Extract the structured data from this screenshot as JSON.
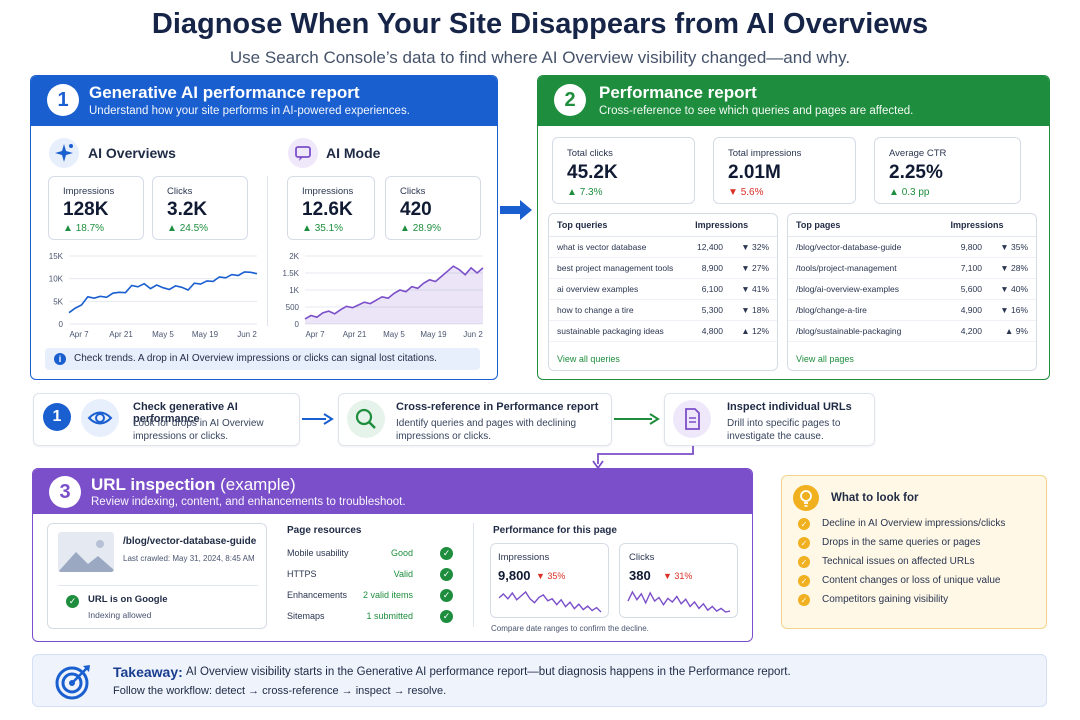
{
  "title": "Diagnose When Your Site Disappears from AI Overviews",
  "subtitle": "Use Search Console’s data to find where AI Overview visibility changed—and why.",
  "colors": {
    "blue": "#1a5fd0",
    "green": "#1e8e3e",
    "purple": "#7b4fc9",
    "red": "#d93025",
    "yellow": "#f0b020"
  },
  "panel1": {
    "number": "1",
    "title": "Generative AI performance report",
    "subtitle": "Understand how your site performs in AI-powered experiences.",
    "ai_overviews": {
      "label": "AI Overviews",
      "icon": "sparkle-icon",
      "impressions_label": "Impressions",
      "impressions": "128K",
      "impressions_change": "18.7%",
      "clicks_label": "Clicks",
      "clicks": "3.2K",
      "clicks_change": "24.5%",
      "yticks": [
        "15K",
        "10K",
        "5K",
        "0"
      ],
      "xticks": [
        "Apr 7",
        "Apr 21",
        "May 5",
        "May 19",
        "Jun 2"
      ]
    },
    "ai_mode": {
      "label": "AI Mode",
      "icon": "chat-icon",
      "impressions_label": "Impressions",
      "impressions": "12.6K",
      "impressions_change": "35.1%",
      "clicks_label": "Clicks",
      "clicks": "420",
      "clicks_change": "28.9%",
      "yticks": [
        "2K",
        "1.5K",
        "1K",
        "500",
        "0"
      ],
      "xticks": [
        "Apr 7",
        "Apr 21",
        "May 5",
        "May 19",
        "Jun 2"
      ]
    },
    "info": "Check trends. A drop in AI Overview impressions or clicks can signal lost citations."
  },
  "panel2": {
    "number": "2",
    "title": "Performance report",
    "subtitle": "Cross-reference to see which queries and pages are affected.",
    "kpis": [
      {
        "label": "Total clicks",
        "value": "45.2K",
        "change": "7.3%",
        "dir": "up"
      },
      {
        "label": "Total impressions",
        "value": "2.01M",
        "change": "5.6%",
        "dir": "down"
      },
      {
        "label": "Average CTR",
        "value": "2.25%",
        "change": "0.3 pp",
        "dir": "up"
      }
    ],
    "queries": {
      "header": "Top queries",
      "col": "Impressions",
      "link": "View all queries",
      "rows": [
        {
          "name": "what is vector database",
          "value": "12,400",
          "change": "32%",
          "dir": "down"
        },
        {
          "name": "best project management tools",
          "value": "8,900",
          "change": "27%",
          "dir": "down"
        },
        {
          "name": "ai overview examples",
          "value": "6,100",
          "change": "41%",
          "dir": "down"
        },
        {
          "name": "how to change a tire",
          "value": "5,300",
          "change": "18%",
          "dir": "down"
        },
        {
          "name": "sustainable packaging ideas",
          "value": "4,800",
          "change": "12%",
          "dir": "up"
        }
      ]
    },
    "pages": {
      "header": "Top pages",
      "col": "Impressions",
      "link": "View all pages",
      "rows": [
        {
          "name": "/blog/vector-database-guide",
          "value": "9,800",
          "change": "35%",
          "dir": "down"
        },
        {
          "name": "/tools/project-management",
          "value": "7,100",
          "change": "28%",
          "dir": "down"
        },
        {
          "name": "/blog/ai-overview-examples",
          "value": "5,600",
          "change": "40%",
          "dir": "down"
        },
        {
          "name": "/blog/change-a-tire",
          "value": "4,900",
          "change": "16%",
          "dir": "down"
        },
        {
          "name": "/blog/sustainable-packaging",
          "value": "4,200",
          "change": "9%",
          "dir": "up"
        }
      ]
    }
  },
  "workflow": [
    {
      "number": "1",
      "icon": "eye-icon",
      "title": "Check generative AI performance",
      "text": "Look for drops in AI Overview impressions or clicks."
    },
    {
      "icon": "magnifier-icon",
      "title": "Cross-reference in Performance report",
      "text": "Identify queries and pages with declining impressions or clicks."
    },
    {
      "icon": "document-icon",
      "title": "Inspect individual URLs",
      "text": "Drill into specific pages to investigate the cause."
    }
  ],
  "panel3": {
    "number": "3",
    "title": "URL inspection",
    "title_suffix": "(example)",
    "subtitle": "Review indexing, content, and enhancements to troubleshoot.",
    "url": "/blog/vector-database-guide",
    "crawled": "Last crawled: May 31, 2024, 8:45 AM",
    "status": "URL is on Google",
    "status_sub": "Indexing allowed",
    "resources_title": "Page resources",
    "resources": [
      {
        "name": "Mobile usability",
        "value": "Good"
      },
      {
        "name": "HTTPS",
        "value": "Valid"
      },
      {
        "name": "Enhancements",
        "value": "2 valid items"
      },
      {
        "name": "Sitemaps",
        "value": "1 submitted"
      }
    ],
    "perf_title": "Performance for this page",
    "impressions_label": "Impressions",
    "impressions": "9,800",
    "impressions_change": "35%",
    "clicks_label": "Clicks",
    "clicks": "380",
    "clicks_change": "31%",
    "note": "Compare date ranges to confirm the decline."
  },
  "look_for": {
    "title": "What to look for",
    "icon": "lightbulb-icon",
    "items": [
      "Decline in AI Overview impressions/clicks",
      "Drops in the same queries or pages",
      "Technical issues on affected URLs",
      "Content changes or loss of unique value",
      "Competitors gaining visibility"
    ]
  },
  "takeaway": {
    "label": "Takeaway:",
    "text": "AI Overview visibility starts in the Generative AI performance report—but diagnosis happens in the Performance report.",
    "text2": "Follow the workflow: detect → cross-reference → inspect → resolve.",
    "icon": "target-icon"
  },
  "chart_data": [
    {
      "type": "line",
      "series": [
        {
          "values": [
            2500,
            3500,
            4200,
            6000,
            5700,
            6100,
            5900,
            6800,
            7000,
            6900,
            8500,
            8200,
            8900,
            7800,
            8600,
            8000,
            7600,
            8400,
            8100,
            7500,
            9000,
            8800,
            9500,
            9400,
            10400,
            10200,
            10900,
            10700,
            11500,
            11400,
            11100
          ]
        }
      ],
      "x_ticks": [
        "Apr 7",
        "Apr 21",
        "May 5",
        "May 19",
        "Jun 2"
      ],
      "y_ticks": [
        "15K",
        "10K",
        "5K",
        "0"
      ],
      "ylim": [
        0,
        15000
      ]
    },
    {
      "type": "area",
      "series": [
        {
          "values": [
            150,
            250,
            200,
            330,
            380,
            300,
            420,
            520,
            480,
            560,
            640,
            600,
            700,
            800,
            760,
            900,
            1000,
            950,
            1100,
            1050,
            1200,
            1300,
            1250,
            1400,
            1550,
            1700,
            1600,
            1450,
            1650,
            1500,
            1650
          ]
        }
      ],
      "x_ticks": [
        "Apr 7",
        "Apr 21",
        "May 5",
        "May 19",
        "Jun 2"
      ],
      "y_ticks": [
        "2K",
        "1.5K",
        "1K",
        "500",
        "0"
      ],
      "ylim": [
        0,
        2000
      ]
    },
    {
      "type": "line",
      "series": [
        {
          "values": [
            62,
            70,
            60,
            72,
            58,
            66,
            74,
            60,
            52,
            63,
            68,
            56,
            60,
            48,
            58,
            44,
            53,
            40,
            49,
            38,
            45,
            36,
            42,
            33
          ]
        }
      ]
    },
    {
      "type": "line",
      "series": [
        {
          "values": [
            52,
            72,
            55,
            68,
            48,
            70,
            52,
            60,
            44,
            58,
            50,
            62,
            46,
            56,
            40,
            50,
            36,
            46,
            32,
            40,
            30,
            36,
            28,
            30
          ]
        }
      ]
    }
  ]
}
